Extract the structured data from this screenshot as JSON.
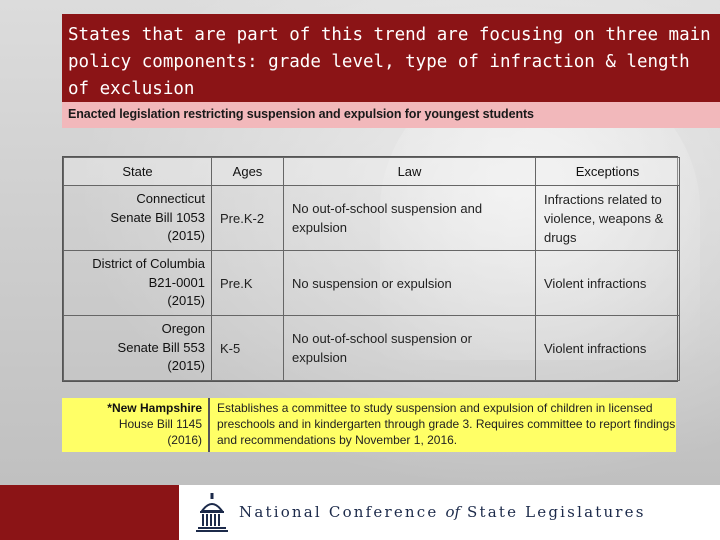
{
  "slide": {
    "title": "States that are part of this trend are focusing on three main policy components: grade level, type of infraction & length of exclusion",
    "subtitle": "Enacted legislation restricting suspension and expulsion for youngest students"
  },
  "table": {
    "headers": [
      "State",
      "Ages",
      "Law",
      "Exceptions"
    ],
    "rows": [
      {
        "state_lines": [
          "Connecticut",
          "Senate Bill 1053",
          "(2015)"
        ],
        "ages": "Pre.K-2",
        "law": "No out-of-school suspension and expulsion",
        "exceptions": "Infractions related to violence, weapons & drugs"
      },
      {
        "state_lines": [
          "District of Columbia",
          "B21-0001",
          "(2015)"
        ],
        "ages": "Pre.K",
        "law": "No suspension or expulsion",
        "exceptions": "Violent infractions"
      },
      {
        "state_lines": [
          "Oregon",
          "Senate Bill 553",
          "(2015)"
        ],
        "ages": "K-5",
        "law": "No out-of-school suspension or expulsion",
        "exceptions": "Violent infractions"
      }
    ]
  },
  "new_hampshire": {
    "state": "*New Hampshire",
    "bill": "House Bill 1145",
    "year": "(2016)",
    "description": "Establishes a committee to study suspension and expulsion of children in licensed preschools and in kindergarten through grade 3. Requires committee to report findings and recommendations by November 1, 2016."
  },
  "footer": {
    "org_part1": "National Conference",
    "org_of": "of",
    "org_part2": "State Legislatures",
    "logo_icon": "capitol-dome-icon",
    "brand_color": "#8b1416"
  }
}
